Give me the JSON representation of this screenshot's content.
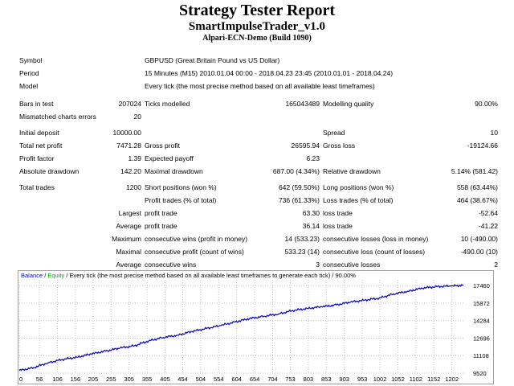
{
  "header": {
    "title": "Strategy Tester Report",
    "ea_name": "SmartImpulseTrader_v1.0",
    "server": "Alpari-ECN-Demo (Build 1090)"
  },
  "info": {
    "symbol_label": "Symbol",
    "symbol": "GBPUSD (Great Britain Pound vs US Dollar)",
    "period_label": "Period",
    "period": "15 Minutes (M15) 2010.01.04 00:00 - 2018.04.23 23:45 (2010.01.01 - 2018.04.24)",
    "model_label": "Model",
    "model": "Every tick (the most precise method based on all available least timeframes)"
  },
  "stats": {
    "bars_label": "Bars in test",
    "bars": "207024",
    "ticks_label": "Ticks modelled",
    "ticks": "165043489",
    "quality_label": "Modelling quality",
    "quality": "90.00%",
    "mismatch_label": "Mismatched charts errors",
    "mismatch": "20",
    "deposit_label": "Initial deposit",
    "deposit": "10000.00",
    "spread_label": "Spread",
    "spread": "10",
    "net_label": "Total net profit",
    "net": "7471.28",
    "gprofit_label": "Gross profit",
    "gprofit": "26595.94",
    "gloss_label": "Gross loss",
    "gloss": "-19124.66",
    "pf_label": "Profit factor",
    "pf": "1.39",
    "ep_label": "Expected payoff",
    "ep": "6.23",
    "absdd_label": "Absolute drawdown",
    "absdd": "142.20",
    "maxdd_label": "Maximal drawdown",
    "maxdd": "687.00 (4.34%)",
    "reldd_label": "Relative drawdown",
    "reldd": "5.14% (581.42)",
    "trades_label": "Total trades",
    "trades": "1200",
    "short_label": "Short positions (won %)",
    "short": "642 (59.50%)",
    "long_label": "Long positions (won %)",
    "long": "558 (63.44%)",
    "ptrades_label": "Profit trades (% of total)",
    "ptrades": "736 (61.33%)",
    "ltrades_label": "Loss trades (% of total)",
    "ltrades": "464 (38.67%)",
    "largest_label": "Largest",
    "lprofit_label": "profit trade",
    "lprofit": "63.30",
    "lloss_label": "loss trade",
    "lloss": "-52.64",
    "average_label": "Average",
    "aprofit_label": "profit trade",
    "aprofit": "36.14",
    "aloss_label": "loss trade",
    "aloss": "-41.22",
    "maximum_label": "Maximum",
    "mcw_label": "consecutive wins (profit in money)",
    "mcw": "14 (533.23)",
    "mcl_label": "consecutive losses (loss in money)",
    "mcl": "10 (-490.00)",
    "maximal_label": "Maximal",
    "mcp_label": "consecutive profit (count of wins)",
    "mcp": "533.23 (14)",
    "mclc_label": "consecutive loss (count of losses)",
    "mclc": "-490.00 (10)",
    "average2_label": "Average",
    "acw_label": "consecutive wins",
    "acw": "3",
    "acl_label": "consecutive losses",
    "acl": "2"
  },
  "chart_data": {
    "type": "line",
    "legend": [
      "Balance",
      "Equity"
    ],
    "legend_text": " / Every tick (the most precise method based on all available least timeframes to generate each tick) / 90.00%",
    "x_ticks": [
      "0",
      "56",
      "106",
      "156",
      "205",
      "255",
      "305",
      "355",
      "405",
      "454",
      "504",
      "554",
      "604",
      "654",
      "704",
      "753",
      "803",
      "853",
      "903",
      "953",
      "1002",
      "1052",
      "1102",
      "1152",
      "1202"
    ],
    "y_ticks": [
      "17460",
      "15872",
      "14284",
      "12696",
      "11108",
      "9520"
    ],
    "xlim": [
      0,
      1234
    ],
    "ylim": [
      9520,
      17978
    ],
    "colors": {
      "balance": "#0000c8",
      "legend_balance": "#0000c8",
      "legend_equity": "#00b000",
      "frame": "#c0c0c0",
      "grid": "#c0c0c0"
    },
    "series": [
      {
        "name": "Balance",
        "x": [
          0,
          40,
          80,
          120,
          160,
          200,
          240,
          280,
          320,
          360,
          400,
          440,
          480,
          520,
          560,
          600,
          640,
          680,
          720,
          760,
          800,
          840,
          880,
          920,
          960,
          1000,
          1040,
          1080,
          1120,
          1160,
          1200,
          1234
        ],
        "values": [
          9760,
          10020,
          10460,
          10760,
          10960,
          11260,
          11520,
          11800,
          12000,
          12450,
          12760,
          12960,
          13300,
          13570,
          13840,
          14160,
          14470,
          14680,
          14880,
          15200,
          15380,
          15540,
          15700,
          15960,
          16140,
          16320,
          16700,
          16940,
          17230,
          17360,
          17420,
          17480
        ]
      }
    ]
  }
}
